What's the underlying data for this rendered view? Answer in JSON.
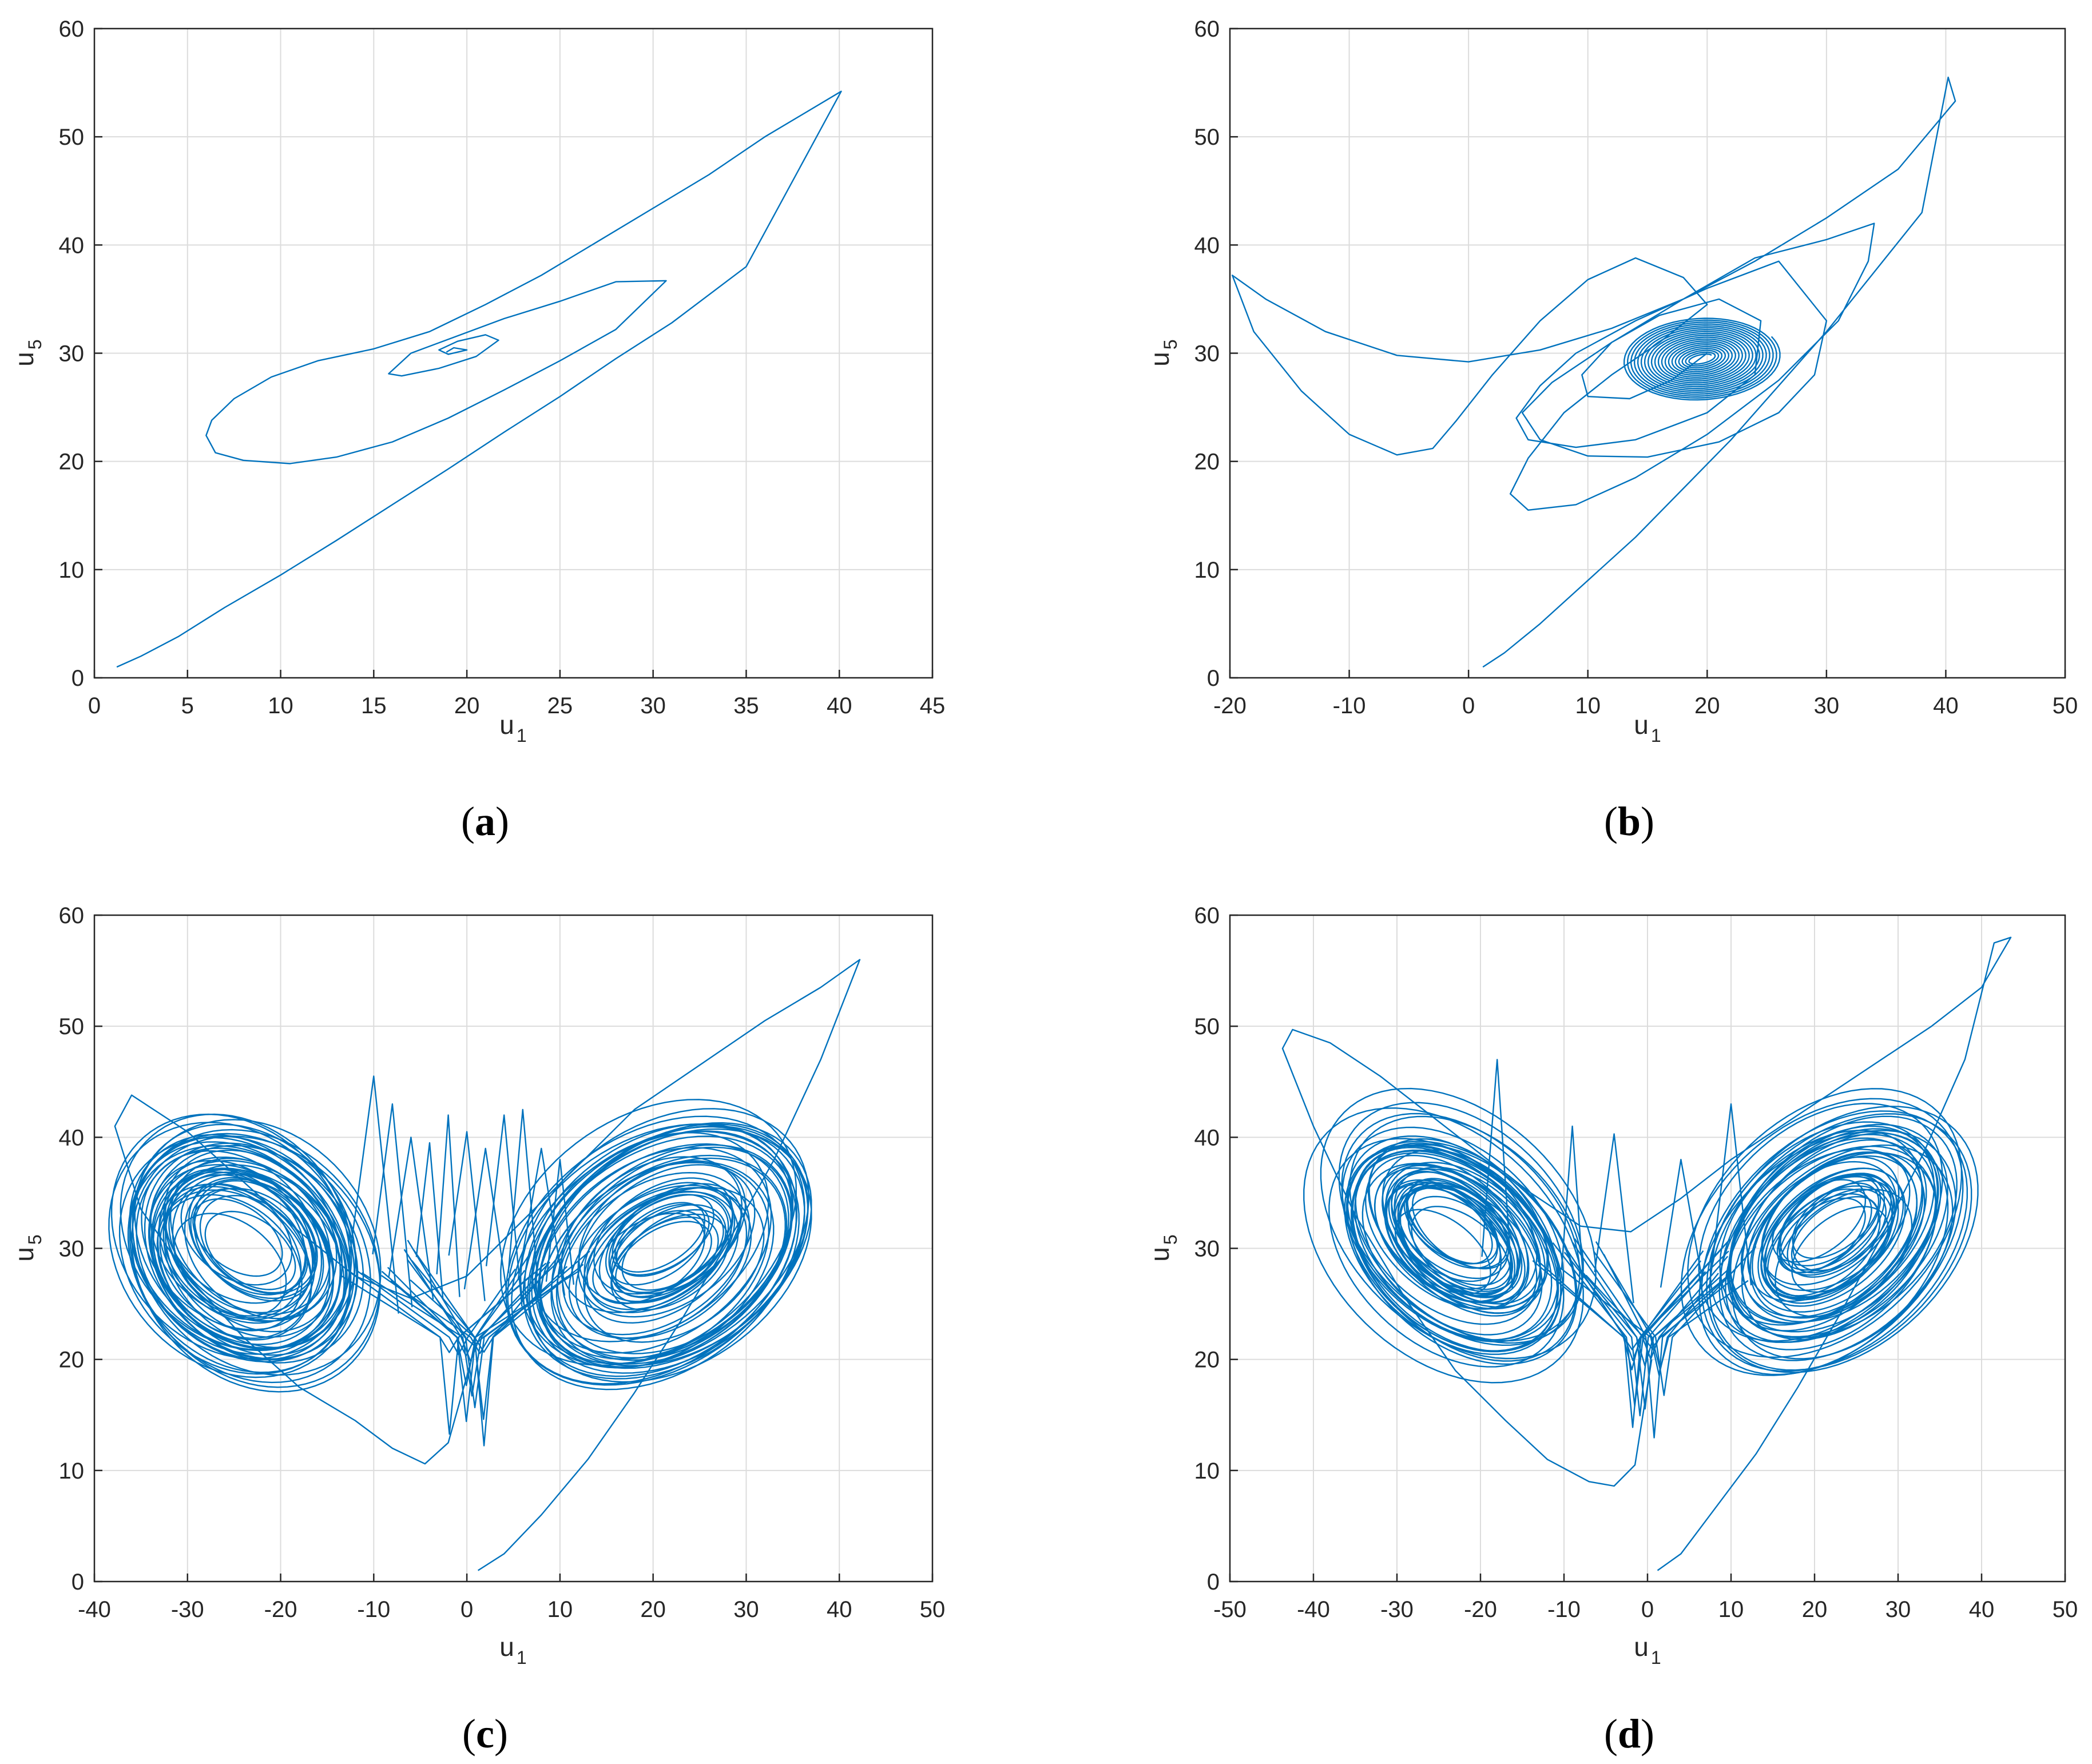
{
  "figure": {
    "line_color": "#0072BD",
    "grid_color": "#DCDCDC",
    "axis_color": "#262626"
  },
  "chart_data": [
    {
      "panel": "a",
      "label_open": "(",
      "label_letter": "a",
      "label_close": ")",
      "type": "line",
      "title": "",
      "xlabel_main": "u",
      "xlabel_sub": "1",
      "ylabel_main": "u",
      "ylabel_sub": "5",
      "xlim": [
        0,
        45
      ],
      "ylim": [
        0,
        60
      ],
      "xticks": [
        0,
        5,
        10,
        15,
        20,
        25,
        30,
        35,
        40,
        45
      ],
      "xtick_labels": [
        "0",
        "5",
        "10",
        "15",
        "20",
        "25",
        "30",
        "35",
        "40",
        "45"
      ],
      "yticks": [
        0,
        10,
        20,
        30,
        40,
        50,
        60
      ],
      "ytick_labels": [
        "0",
        "10",
        "20",
        "30",
        "40",
        "50",
        "60"
      ],
      "grid": true,
      "series": [
        {
          "name": "trajectory",
          "x": [
            1.2,
            2.5,
            4.5,
            7,
            10,
            13,
            16,
            19,
            22,
            25,
            28,
            31,
            35,
            40.1,
            36,
            33,
            30,
            27,
            24,
            21,
            18,
            15,
            12,
            9.5,
            7.5,
            6.3,
            6,
            6.5,
            8,
            10.5,
            13,
            16,
            19,
            22,
            25,
            28,
            30.7,
            28,
            25,
            22,
            19.5,
            17,
            15.8,
            16.5,
            18.5,
            20.5,
            21.7,
            21,
            19.5,
            18.5,
            19,
            20,
            19.3,
            18.9
          ],
          "y": [
            1,
            2,
            3.8,
            6.5,
            9.5,
            12.7,
            16,
            19.3,
            22.7,
            26,
            29.5,
            32.8,
            38,
            54.2,
            50,
            46.5,
            43.4,
            40.3,
            37.2,
            34.5,
            32,
            30.4,
            29.3,
            27.8,
            25.8,
            23.8,
            22.4,
            20.8,
            20.1,
            19.8,
            20.4,
            21.8,
            24,
            26.6,
            29.3,
            32.2,
            36.7,
            36.6,
            34.8,
            33.2,
            31.6,
            30,
            28.1,
            27.9,
            28.6,
            29.7,
            31.2,
            31.7,
            31.1,
            30.3,
            29.9,
            30.3,
            30.5,
            30.1
          ]
        }
      ]
    },
    {
      "panel": "b",
      "label_open": "(",
      "label_letter": "b",
      "label_close": ")",
      "type": "line",
      "title": "",
      "xlabel_main": "u",
      "xlabel_sub": "1",
      "ylabel_main": "u",
      "ylabel_sub": "5",
      "xlim": [
        -20,
        50
      ],
      "ylim": [
        0,
        60
      ],
      "xticks": [
        -20,
        -10,
        0,
        10,
        20,
        30,
        40,
        50
      ],
      "xtick_labels": [
        "-20",
        "-10",
        "0",
        "10",
        "20",
        "30",
        "40",
        "50"
      ],
      "yticks": [
        0,
        10,
        20,
        30,
        40,
        50,
        60
      ],
      "ytick_labels": [
        "0",
        "10",
        "20",
        "30",
        "40",
        "50",
        "60"
      ],
      "grid": true,
      "series": [
        {
          "name": "trajectory",
          "x": [
            1.2,
            3,
            6,
            10,
            14,
            18,
            22,
            26,
            30,
            34,
            38,
            40.2,
            40.8,
            36,
            30,
            24,
            18,
            12,
            6,
            0,
            -6,
            -12,
            -17,
            -19.8,
            -18,
            -14,
            -10,
            -6,
            -3,
            -1,
            2,
            6,
            10,
            14,
            18,
            20,
            16,
            12,
            8,
            5,
            3.5,
            5,
            9,
            14,
            20,
            26,
            31,
            33.5,
            34,
            30,
            24,
            18,
            12,
            7,
            4.5,
            6,
            10,
            15,
            21,
            26,
            29,
            30,
            26,
            20,
            14,
            9,
            6,
            4,
            5,
            9,
            14,
            20,
            24,
            24.5,
            21,
            16,
            12,
            9.5,
            10,
            13.5,
            17,
            20
          ],
          "y": [
            1,
            2.3,
            5,
            9,
            13,
            17.5,
            22,
            27,
            32,
            37.5,
            43,
            55.5,
            53.3,
            47,
            42.5,
            38.5,
            35,
            32.3,
            30.3,
            29.2,
            29.8,
            32,
            35,
            37.2,
            32,
            26.5,
            22.5,
            20.6,
            21.2,
            23.8,
            28,
            33,
            36.8,
            38.8,
            37,
            34.5,
            31,
            28,
            24.5,
            20.3,
            17,
            15.5,
            16,
            18.5,
            22.5,
            27.5,
            33,
            38.5,
            42,
            40.5,
            38.8,
            35,
            31,
            27.3,
            24.5,
            22,
            20.5,
            20.4,
            21.8,
            24.5,
            28,
            33,
            38.5,
            36,
            33,
            30,
            27,
            24,
            22,
            21.3,
            22,
            24.5,
            28,
            33,
            35,
            33.5,
            31,
            28,
            26,
            25.8,
            27.5,
            30
          ]
        },
        {
          "name": "spiral",
          "center": [
            19.5,
            29.5
          ],
          "rx_range": [
            1,
            6.8
          ],
          "ry_range": [
            0.3,
            3.8
          ],
          "tilt_deg": 30,
          "turns": 20
        }
      ]
    },
    {
      "panel": "c",
      "label_open": "(",
      "label_letter": "c",
      "label_close": ")",
      "type": "line",
      "title": "",
      "xlabel_main": "u",
      "xlabel_sub": "1",
      "ylabel_main": "u",
      "ylabel_sub": "5",
      "xlim": [
        -40,
        50
      ],
      "ylim": [
        0,
        60
      ],
      "xticks": [
        -40,
        -30,
        -20,
        -10,
        0,
        10,
        20,
        30,
        40,
        50
      ],
      "xtick_labels": [
        "-40",
        "-30",
        "-20",
        "-10",
        "0",
        "10",
        "20",
        "30",
        "40",
        "50"
      ],
      "yticks": [
        0,
        10,
        20,
        30,
        40,
        50,
        60
      ],
      "ytick_labels": [
        "0",
        "10",
        "20",
        "30",
        "40",
        "50",
        "60"
      ],
      "grid": true,
      "series": [
        {
          "name": "trajectory",
          "x": [
            1.2,
            4,
            8,
            13,
            18,
            23,
            28,
            33,
            38,
            42.2,
            38,
            32,
            25,
            18,
            12,
            6,
            0,
            -6,
            -12,
            -18,
            -24,
            -30,
            -36,
            -37.8,
            -35,
            -30,
            -24,
            -18,
            -12,
            -8,
            -4.5,
            -2,
            0.5
          ],
          "y": [
            1,
            2.5,
            6,
            11,
            17,
            23.5,
            30.5,
            38,
            47,
            56,
            53.5,
            50.5,
            46.5,
            42.5,
            37.5,
            32.5,
            27.5,
            25.5,
            27.5,
            31.5,
            36,
            40.5,
            43.8,
            41,
            33.5,
            27.5,
            22,
            17.5,
            14.5,
            12,
            10.6,
            12.5,
            20
          ]
        },
        {
          "name": "attractor",
          "seed": 7,
          "lobes": [
            {
              "cx": -24,
              "cy": 30,
              "rx_max": 14,
              "ry_max": 11,
              "tilt_deg": -26
            },
            {
              "cx": 21,
              "cy": 30,
              "rx_max": 17,
              "ry_max": 11,
              "tilt_deg": 24
            }
          ],
          "rx_min": 3,
          "ry_min": 1,
          "loops_per_lobe": 46,
          "spikes_x": [
            -10,
            -8,
            -6,
            -4,
            -2,
            0,
            2,
            4,
            6,
            8,
            10
          ],
          "spikes_top": [
            45.5,
            43,
            40,
            39.5,
            42,
            40.5,
            39,
            42,
            42.5,
            39,
            38
          ]
        }
      ]
    },
    {
      "panel": "d",
      "label_open": "(",
      "label_letter": "d",
      "label_close": ")",
      "type": "line",
      "title": "",
      "xlabel_main": "u",
      "xlabel_sub": "1",
      "ylabel_main": "u",
      "ylabel_sub": "5",
      "xlim": [
        -50,
        50
      ],
      "ylim": [
        0,
        60
      ],
      "xticks": [
        -50,
        -40,
        -30,
        -20,
        -10,
        0,
        10,
        20,
        30,
        40,
        50
      ],
      "xtick_labels": [
        "-50",
        "-40",
        "-30",
        "-20",
        "-10",
        "0",
        "10",
        "20",
        "30",
        "40",
        "50"
      ],
      "yticks": [
        0,
        10,
        20,
        30,
        40,
        50,
        60
      ],
      "ytick_labels": [
        "0",
        "10",
        "20",
        "30",
        "40",
        "50",
        "60"
      ],
      "grid": true,
      "series": [
        {
          "name": "trajectory",
          "x": [
            1.2,
            4,
            8,
            13,
            18,
            23,
            28,
            33,
            38,
            41.5,
            43.5,
            40,
            34,
            28,
            22,
            16,
            10,
            4,
            -2,
            -8,
            -14,
            -20,
            -26,
            -32,
            -38,
            -42.5,
            -43.7,
            -40,
            -35,
            -29,
            -23,
            -17,
            -12,
            -7,
            -4,
            -1.5,
            0.5
          ],
          "y": [
            1,
            2.5,
            6.5,
            11.5,
            17.5,
            24,
            31,
            38.5,
            47,
            57.5,
            58,
            53.5,
            50,
            47,
            44,
            41,
            38,
            34.5,
            31.5,
            32,
            35,
            38.5,
            42,
            45.5,
            48.5,
            49.7,
            48,
            41,
            33,
            25.5,
            19,
            14.5,
            11,
            9,
            8.6,
            10.5,
            20
          ]
        },
        {
          "name": "attractor",
          "seed": 11,
          "lobes": [
            {
              "cx": -23,
              "cy": 31,
              "rx_max": 18,
              "ry_max": 11,
              "tilt_deg": -25
            },
            {
              "cx": 22,
              "cy": 31,
              "rx_max": 18,
              "ry_max": 11,
              "tilt_deg": 25
            }
          ],
          "rx_min": 3,
          "ry_min": 1,
          "loops_per_lobe": 46,
          "spikes_x": [
            -18,
            -9,
            -4,
            4,
            10
          ],
          "spikes_top": [
            47,
            41,
            40.3,
            38,
            43
          ]
        }
      ]
    }
  ]
}
